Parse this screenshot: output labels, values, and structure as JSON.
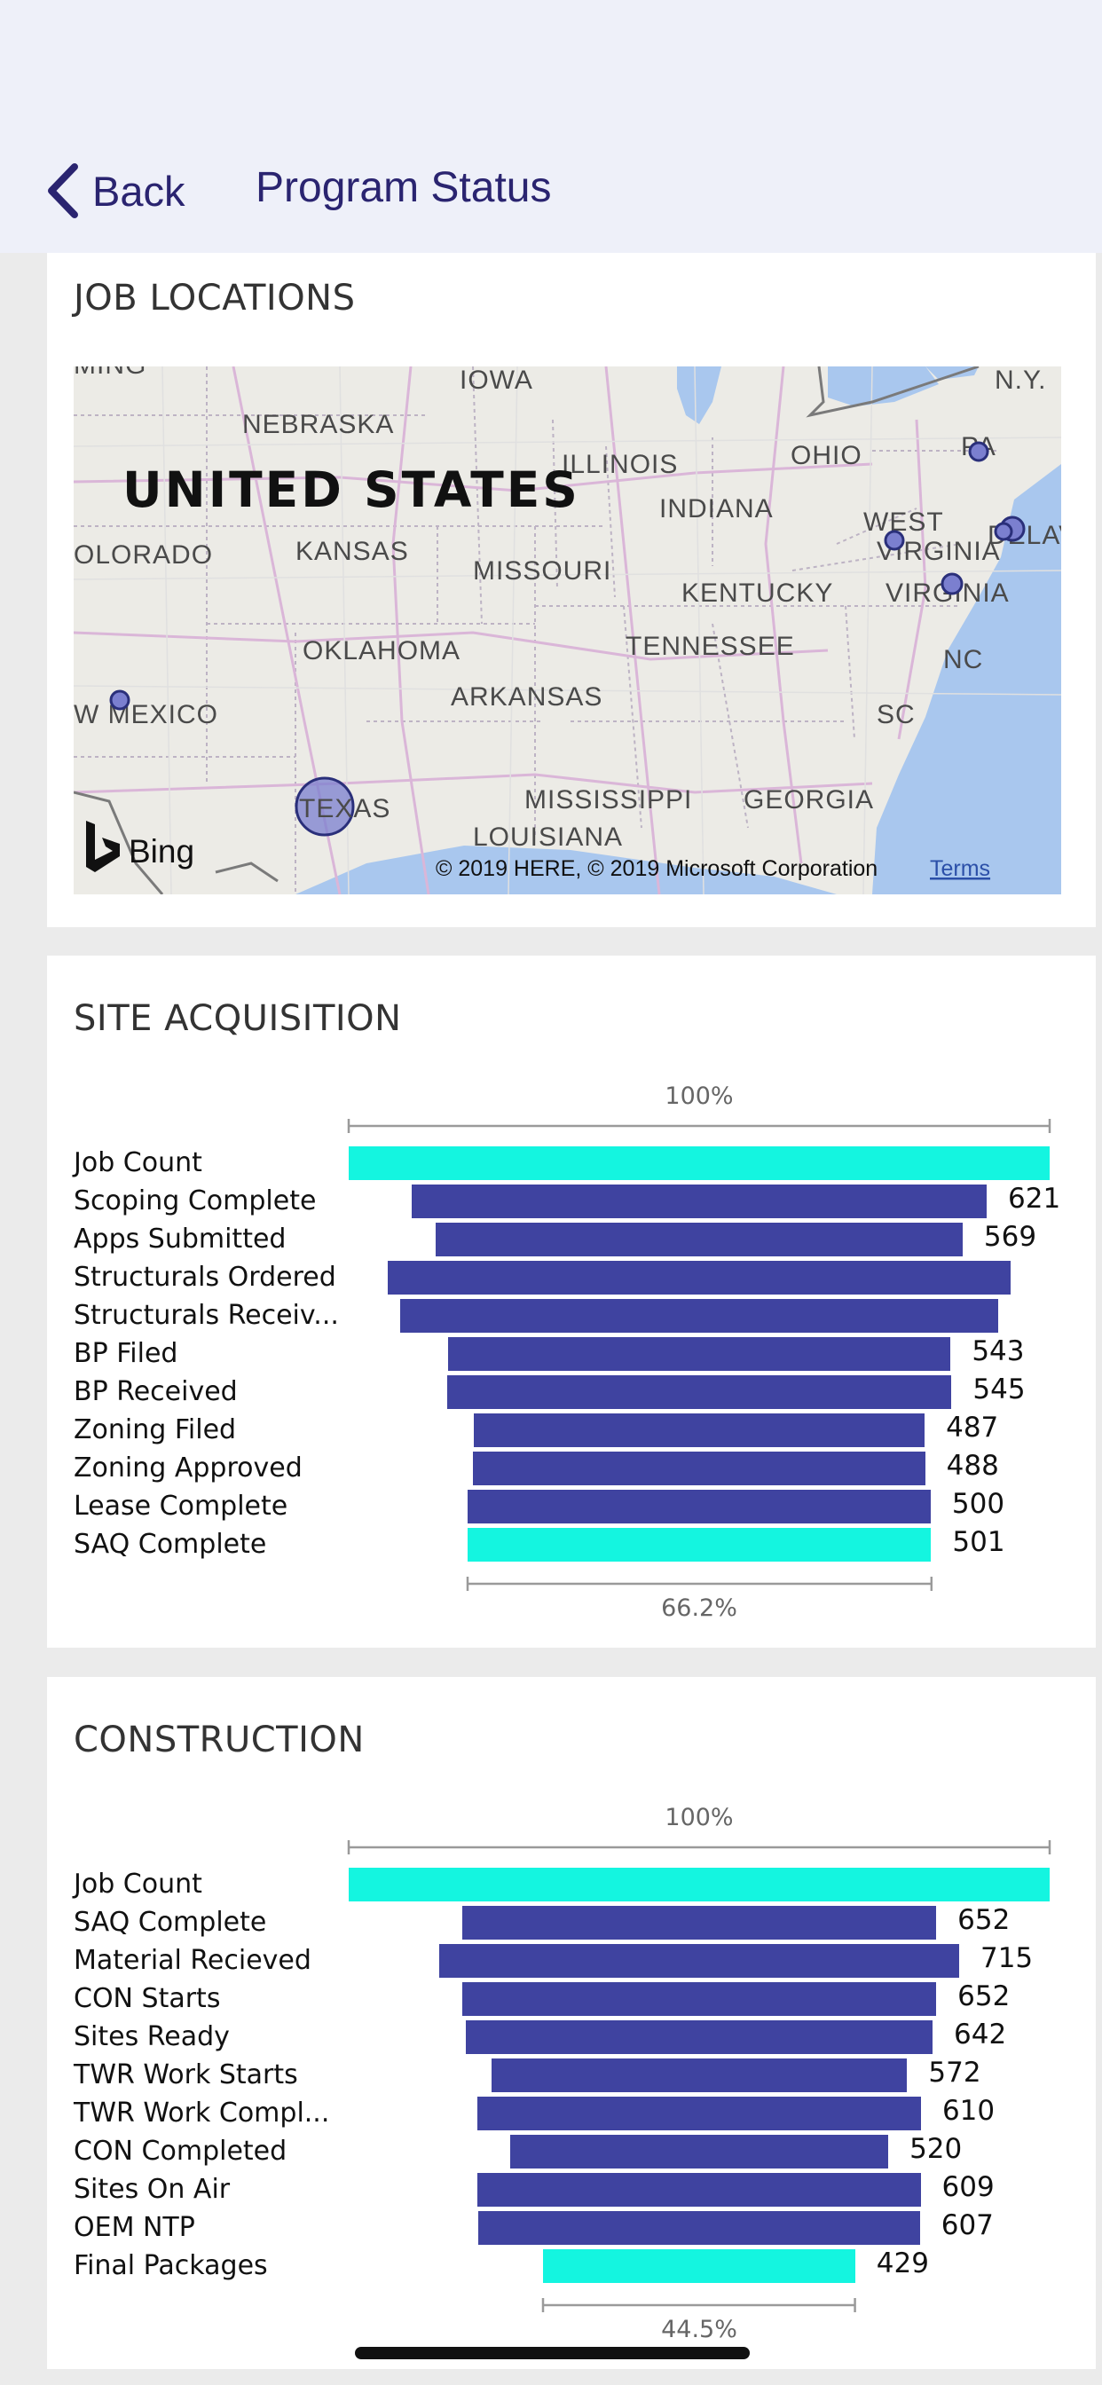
{
  "header": {
    "back_label": "Back",
    "title": "Program Status"
  },
  "job_locations": {
    "title": "JOB LOCATIONS",
    "map_labels": [
      "IOWA",
      "NEBRASKA",
      "ILLINOIS",
      "OHIO",
      "PA",
      "N.Y.",
      "UNITED STATES",
      "INDIANA",
      "OLORADO",
      "KANSAS",
      "MISSOURI",
      "WEST",
      "VIRGINIA",
      "DELAV",
      "KENTUCKY",
      "VIRGINIA",
      "OKLAHOMA",
      "TENNESSEE",
      "NC",
      "ARKANSAS",
      "W MEXICO",
      "SC",
      "TEXAS",
      "MISSISSIPPI",
      "GEORGIA",
      "LOUISIANA",
      "MING"
    ],
    "attribution": "© 2019 HERE, © 2019 Microsoft Corporation",
    "terms_label": "Terms",
    "bing_label": "Bing"
  },
  "colors": {
    "bar": "#3f43a0",
    "highlight_bar": "#14f5e0",
    "bubble_fill": "#7b7fcf",
    "bubble_stroke": "#2a2f7a",
    "header_text": "#2a2470"
  },
  "chart_data": [
    {
      "type": "funnel",
      "title": "SITE ACQUISITION",
      "top_percent_label": "100%",
      "bottom_percent_label": "66.2%",
      "categories": [
        "Job Count",
        "Scoping Complete",
        "Apps Submitted",
        "Structurals Ordered",
        "Structurals Receiv...",
        "BP Filed",
        "BP Received",
        "Zoning Filed",
        "Zoning Approved",
        "Lease Complete",
        "SAQ Complete"
      ],
      "values": [
        757,
        621,
        569,
        673,
        645,
        543,
        545,
        487,
        488,
        500,
        501
      ],
      "value_labels": [
        "",
        "621",
        "569",
        "",
        "",
        "543",
        "545",
        "487",
        "488",
        "500",
        "501"
      ],
      "highlighted": [
        "Job Count",
        "SAQ Complete"
      ]
    },
    {
      "type": "funnel",
      "title": "CONSTRUCTION",
      "top_percent_label": "100%",
      "bottom_percent_label": "44.5%",
      "categories": [
        "Job Count",
        "SAQ Complete",
        "Material Recieved",
        "CON Starts",
        "Sites Ready",
        "TWR Work Starts",
        "TWR Work Compl...",
        "CON Completed",
        "Sites On Air",
        "OEM NTP",
        "Final Packages"
      ],
      "values": [
        964,
        652,
        715,
        652,
        642,
        572,
        610,
        520,
        609,
        607,
        429
      ],
      "value_labels": [
        "",
        "652",
        "715",
        "652",
        "642",
        "572",
        "610",
        "520",
        "609",
        "607",
        "429"
      ],
      "highlighted": [
        "Job Count",
        "Final Packages"
      ]
    }
  ]
}
